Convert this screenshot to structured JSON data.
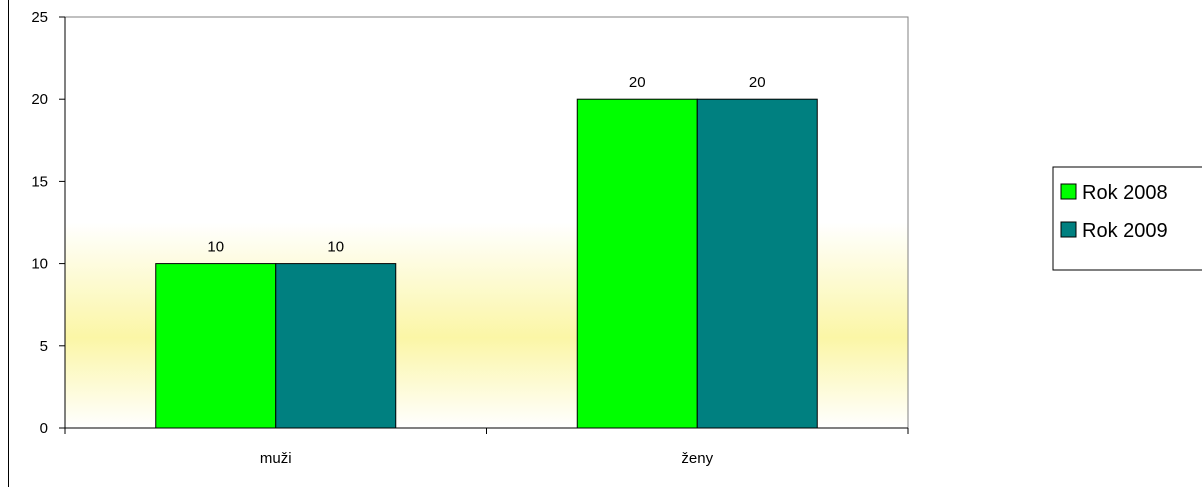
{
  "chart_data": {
    "type": "bar",
    "categories": [
      "muži",
      "ženy"
    ],
    "series": [
      {
        "name": "Rok 2008",
        "values": [
          10,
          20
        ],
        "color": "#00ff00"
      },
      {
        "name": "Rok 2009",
        "values": [
          10,
          20
        ],
        "color": "#008080"
      }
    ],
    "ylim": [
      0,
      25
    ],
    "yticks": [
      0,
      5,
      10,
      15,
      20,
      25
    ],
    "data_labels": true,
    "grid": false,
    "legend": "right",
    "colors": {
      "plot_gradient_top": "#ffffff",
      "plot_gradient_mid": "#fbf6a6",
      "plot_gradient_bottom": "#ffffff",
      "border": "#808080",
      "bar_outline": "#000000"
    }
  }
}
